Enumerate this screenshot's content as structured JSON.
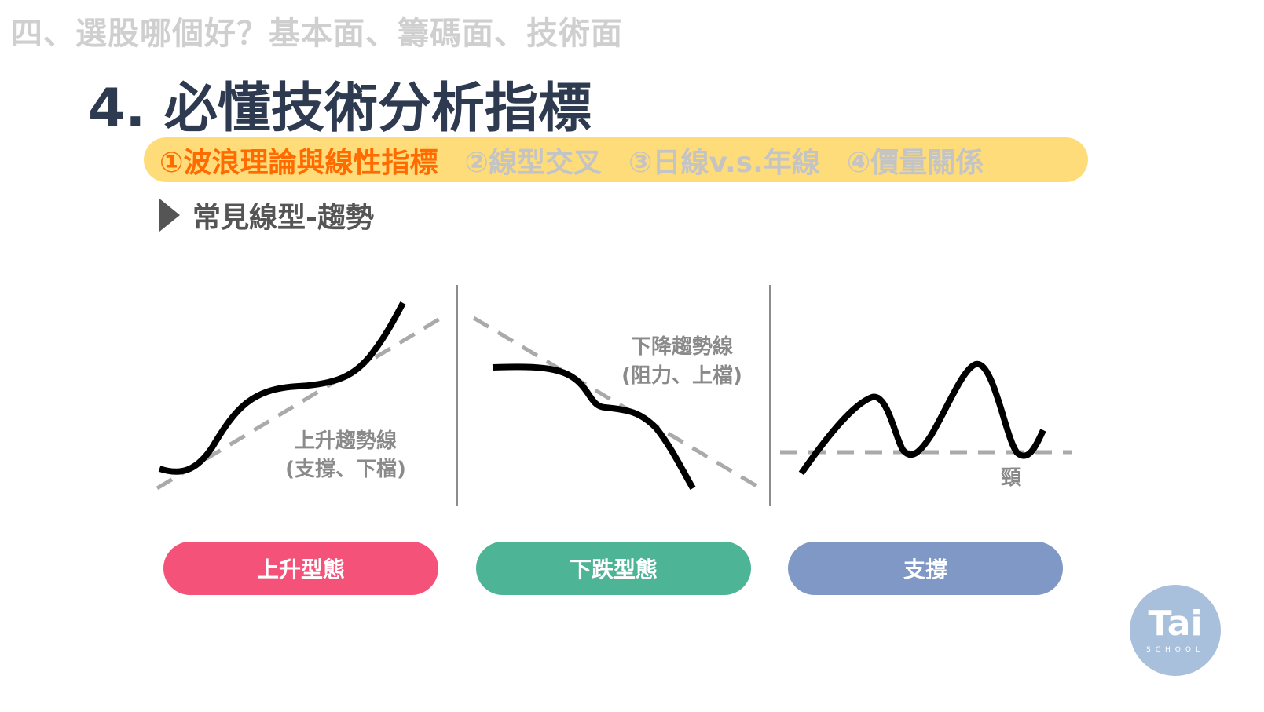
{
  "section_title": "四、選股哪個好？基本面、籌碼面、技術面",
  "page_title": "4. 必懂技術分析指標",
  "tabs": [
    {
      "label": "①波浪理論與線性指標",
      "active": true
    },
    {
      "label": "②線型交叉",
      "active": false
    },
    {
      "label": "③日線v.s.年線",
      "active": false
    },
    {
      "label": "④價量關係",
      "active": false
    }
  ],
  "subheading": "常見線型-趨勢",
  "panels": [
    {
      "label_line1": "上升趨勢線",
      "label_line2": "(支撐、下檔)",
      "button": "上升型態",
      "color": "#f5527a"
    },
    {
      "label_line1": "下降趨勢線",
      "label_line2": "(阻力、上檔)",
      "button": "下跌型態",
      "color": "#4db596"
    },
    {
      "label_line1": "頸",
      "button": "支撐",
      "color": "#7f98c6"
    }
  ],
  "colors": {
    "pill": "#ffdc7a",
    "active_tab": "#ff6b00",
    "title": "#2e3a4f",
    "logo": "#a9c0dd"
  },
  "logo": {
    "main": "Tai",
    "sub": "SCHOOL"
  }
}
